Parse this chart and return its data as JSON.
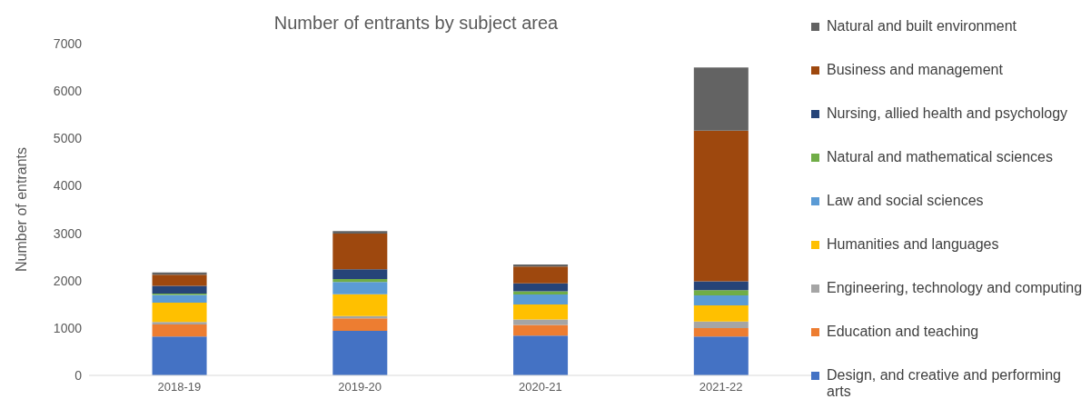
{
  "chart_data": {
    "type": "bar",
    "title": "Number of entrants by subject area",
    "ylabel": "Number of entrants",
    "categories": [
      "2018-19",
      "2019-20",
      "2020-21",
      "2021-22"
    ],
    "stacked": true,
    "legend": "right",
    "grid": false,
    "ylim": [
      0,
      7000
    ],
    "yticks": [
      0,
      1000,
      2000,
      3000,
      4000,
      5000,
      6000,
      7000
    ],
    "series": [
      {
        "name": "Design, and creative and performing arts",
        "color": "#4472c4",
        "values": [
          820,
          940,
          840,
          820
        ]
      },
      {
        "name": "Education and teaching",
        "color": "#ed7d31",
        "values": [
          255,
          265,
          225,
          175
        ]
      },
      {
        "name": "Engineering, technology and computing",
        "color": "#a5a5a5",
        "values": [
          50,
          45,
          115,
          140
        ]
      },
      {
        "name": "Humanities and languages",
        "color": "#ffc000",
        "values": [
          410,
          460,
          315,
          340
        ]
      },
      {
        "name": "Law and social sciences",
        "color": "#5b9bd5",
        "values": [
          160,
          260,
          210,
          215
        ]
      },
      {
        "name": "Natural and mathematical sciences",
        "color": "#70ad47",
        "values": [
          30,
          65,
          70,
          110
        ]
      },
      {
        "name": "Nursing, allied health and psychology",
        "color": "#264478",
        "values": [
          165,
          205,
          165,
          185
        ]
      },
      {
        "name": "Business and management",
        "color": "#9e480e",
        "values": [
          235,
          750,
          355,
          3180
        ]
      },
      {
        "name": "Natural and built environment",
        "color": "#636363",
        "values": [
          45,
          55,
          45,
          1330
        ]
      }
    ]
  }
}
